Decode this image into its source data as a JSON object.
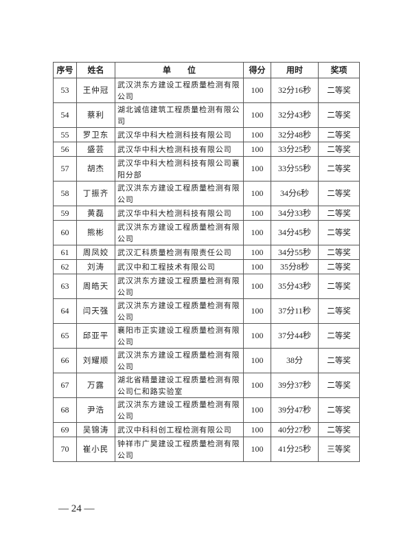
{
  "table": {
    "headers": [
      "序号",
      "姓名",
      "单　　位",
      "得分",
      "用时",
      "奖项"
    ],
    "rows": [
      {
        "no": "53",
        "name": "王仲冠",
        "unit": "武汉洪东方建设工程质量检测有限公司",
        "score": "100",
        "time": "32分16秒",
        "award": "二等奖"
      },
      {
        "no": "54",
        "name": "蔡利",
        "unit": "湖北诚信建筑工程质量检测有限公司",
        "score": "100",
        "time": "32分43秒",
        "award": "二等奖"
      },
      {
        "no": "55",
        "name": "罗卫东",
        "unit": "武汉华中科大检测科技有限公司",
        "score": "100",
        "time": "32分48秒",
        "award": "二等奖"
      },
      {
        "no": "56",
        "name": "盛芸",
        "unit": "武汉华中科大检测科技有限公司",
        "score": "100",
        "time": "33分25秒",
        "award": "二等奖"
      },
      {
        "no": "57",
        "name": "胡杰",
        "unit": "武汉华中科大检测科技有限公司襄阳分部",
        "score": "100",
        "time": "33分55秒",
        "award": "二等奖"
      },
      {
        "no": "58",
        "name": "丁振齐",
        "unit": "武汉洪东方建设工程质量检测有限公司",
        "score": "100",
        "time": "34分6秒",
        "award": "二等奖"
      },
      {
        "no": "59",
        "name": "黄磊",
        "unit": "武汉华中科大检测科技有限公司",
        "score": "100",
        "time": "34分33秒",
        "award": "二等奖"
      },
      {
        "no": "60",
        "name": "熊彬",
        "unit": "武汉洪东方建设工程质量检测有限公司",
        "score": "100",
        "time": "34分45秒",
        "award": "二等奖"
      },
      {
        "no": "61",
        "name": "周凤姣",
        "unit": "武汉汇科质量检测有限责任公司",
        "score": "100",
        "time": "34分55秒",
        "award": "二等奖"
      },
      {
        "no": "62",
        "name": "刘涛",
        "unit": "武汉中和工程技术有限公司",
        "score": "100",
        "time": "35分8秒",
        "award": "二等奖"
      },
      {
        "no": "63",
        "name": "周皓天",
        "unit": "武汉洪东方建设工程质量检测有限公司",
        "score": "100",
        "time": "35分43秒",
        "award": "二等奖"
      },
      {
        "no": "64",
        "name": "闫天强",
        "unit": "武汉洪东方建设工程质量检测有限公司",
        "score": "100",
        "time": "37分11秒",
        "award": "二等奖"
      },
      {
        "no": "65",
        "name": "邱亚平",
        "unit": "襄阳市正实建设工程质量检测有限公司",
        "score": "100",
        "time": "37分44秒",
        "award": "二等奖"
      },
      {
        "no": "66",
        "name": "刘耀顺",
        "unit": "武汉洪东方建设工程质量检测有限公司",
        "score": "100",
        "time": "38分",
        "award": "二等奖"
      },
      {
        "no": "67",
        "name": "万露",
        "unit": "湖北省精量建设工程质量检测有限公司仁和路实验室",
        "score": "100",
        "time": "39分37秒",
        "award": "二等奖"
      },
      {
        "no": "68",
        "name": "尹浩",
        "unit": "武汉洪东方建设工程质量检测有限公司",
        "score": "100",
        "time": "39分47秒",
        "award": "二等奖"
      },
      {
        "no": "69",
        "name": "吴锦涛",
        "unit": "武汉中科科创工程检测有限公司",
        "score": "100",
        "time": "40分27秒",
        "award": "二等奖"
      },
      {
        "no": "70",
        "name": "崔小民",
        "unit": "钟祥市广昊建设工程质量检测有限公司",
        "score": "100",
        "time": "41分25秒",
        "award": "三等奖"
      }
    ]
  },
  "footer": {
    "page": "— 24 —"
  }
}
